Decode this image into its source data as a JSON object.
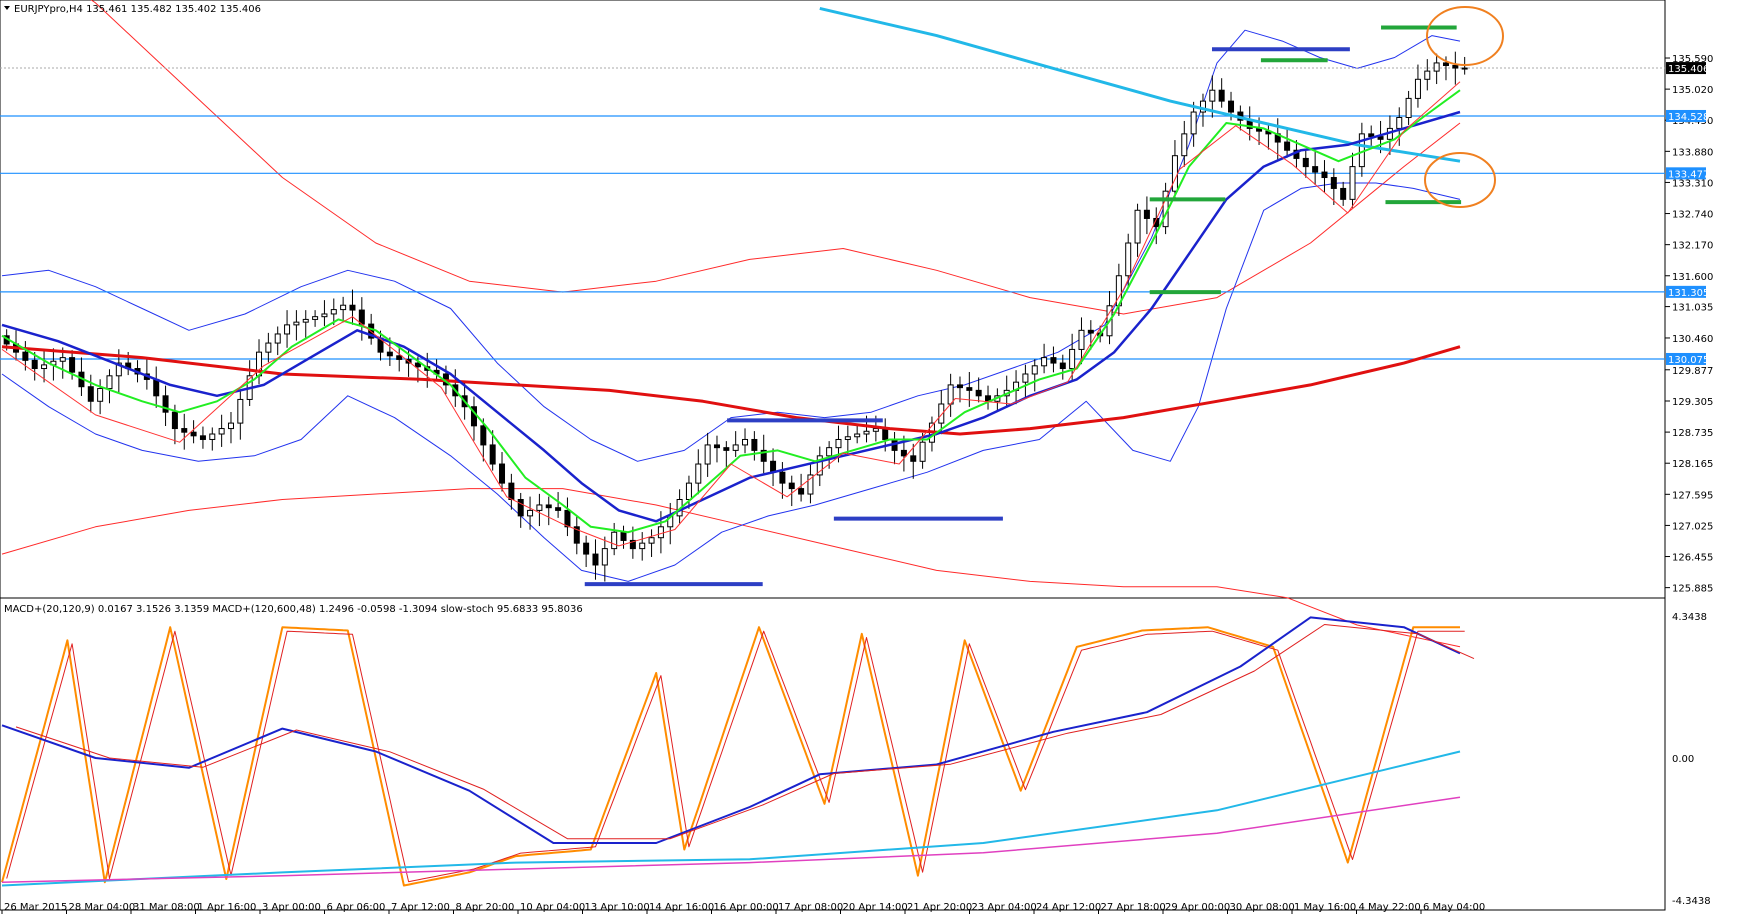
{
  "header": {
    "symbol": "EURJPYpro,H4",
    "ohlc": "135.461 135.482 135.402 135.406",
    "indicators": "MACD+(20,120,9) 0.0167 3.1526 3.1359   MACD+(120,600,48) 1.2496 -0.0598 -1.3094   slow-stoch 95.6833 95.8036"
  },
  "chart_data": [
    {
      "type": "candlestick",
      "title": "EURJPYpro,H4",
      "price_ticks": [
        "135.590",
        "135.020",
        "134.450",
        "133.880",
        "133.310",
        "132.740",
        "132.170",
        "131.600",
        "131.035",
        "130.460",
        "129.877",
        "129.305",
        "128.735",
        "128.165",
        "127.595",
        "127.025",
        "126.455",
        "125.885"
      ],
      "price_ylim": [
        125.75,
        136.25
      ],
      "current_price": "135.406",
      "horizontal_levels": [
        {
          "label": "134.528",
          "value": 134.528
        },
        {
          "label": "133.477",
          "value": 133.477
        },
        {
          "label": "131.305",
          "value": 131.305
        },
        {
          "label": "130.075",
          "value": 130.075
        }
      ],
      "time_labels": [
        "26 Mar 2015",
        "28 Mar 04:00",
        "31 Mar 08:00",
        "1 Apr 16:00",
        "3 Apr 00:00",
        "6 Apr 06:00",
        "7 Apr 12:00",
        "8 Apr 20:00",
        "10 Apr 04:00",
        "13 Apr 10:00",
        "14 Apr 16:00",
        "16 Apr 00:00",
        "17 Apr 08:00",
        "20 Apr 14:00",
        "21 Apr 20:00",
        "23 Apr 04:00",
        "24 Apr 12:00",
        "27 Apr 18:00",
        "29 Apr 00:00",
        "30 Apr 08:00",
        "1 May 16:00",
        "4 May 22:00",
        "6 May 04:00"
      ],
      "close_path": [
        [
          0,
          130.5
        ],
        [
          8,
          129.9
        ],
        [
          14,
          130.1
        ],
        [
          20,
          129.3
        ],
        [
          26,
          130.0
        ],
        [
          32,
          129.7
        ],
        [
          38,
          128.8
        ],
        [
          44,
          128.6
        ],
        [
          50,
          128.9
        ],
        [
          56,
          130.2
        ],
        [
          62,
          130.7
        ],
        [
          70,
          130.9
        ],
        [
          75,
          131.1
        ],
        [
          82,
          130.2
        ],
        [
          88,
          130.0
        ],
        [
          94,
          129.8
        ],
        [
          100,
          129.2
        ],
        [
          104,
          128.5
        ],
        [
          108,
          127.8
        ],
        [
          112,
          127.2
        ],
        [
          116,
          127.4
        ],
        [
          120,
          127.3
        ],
        [
          124,
          126.7
        ],
        [
          128,
          126.3
        ],
        [
          132,
          126.9
        ],
        [
          136,
          126.6
        ],
        [
          140,
          126.8
        ],
        [
          144,
          127.2
        ],
        [
          148,
          127.8
        ],
        [
          152,
          128.5
        ],
        [
          156,
          128.4
        ],
        [
          160,
          128.6
        ],
        [
          164,
          128.2
        ],
        [
          168,
          127.8
        ],
        [
          172,
          127.6
        ],
        [
          176,
          128.3
        ],
        [
          180,
          128.6
        ],
        [
          184,
          128.7
        ],
        [
          188,
          128.8
        ],
        [
          192,
          128.4
        ],
        [
          196,
          128.2
        ],
        [
          200,
          128.9
        ],
        [
          204,
          129.6
        ],
        [
          208,
          129.5
        ],
        [
          212,
          129.3
        ],
        [
          216,
          129.5
        ],
        [
          220,
          129.8
        ],
        [
          224,
          130.1
        ],
        [
          228,
          129.9
        ],
        [
          232,
          130.6
        ],
        [
          236,
          130.5
        ],
        [
          240,
          131.6
        ],
        [
          244,
          132.8
        ],
        [
          248,
          132.5
        ],
        [
          252,
          133.8
        ],
        [
          256,
          134.6
        ],
        [
          260,
          135.0
        ],
        [
          264,
          134.6
        ],
        [
          268,
          134.3
        ],
        [
          272,
          134.2
        ],
        [
          276,
          133.9
        ],
        [
          280,
          133.6
        ],
        [
          284,
          133.4
        ],
        [
          288,
          133.0
        ],
        [
          292,
          134.2
        ],
        [
          296,
          134.1
        ],
        [
          300,
          134.5
        ],
        [
          304,
          135.2
        ],
        [
          308,
          135.5
        ],
        [
          312,
          135.406
        ]
      ],
      "ma_green": [
        [
          0,
          130.5
        ],
        [
          10,
          130.0
        ],
        [
          20,
          129.6
        ],
        [
          30,
          129.3
        ],
        [
          38,
          129.1
        ],
        [
          46,
          129.3
        ],
        [
          54,
          129.7
        ],
        [
          62,
          130.3
        ],
        [
          72,
          130.8
        ],
        [
          80,
          130.6
        ],
        [
          88,
          130.1
        ],
        [
          96,
          129.6
        ],
        [
          104,
          128.8
        ],
        [
          112,
          127.9
        ],
        [
          120,
          127.4
        ],
        [
          126,
          127.0
        ],
        [
          134,
          126.9
        ],
        [
          142,
          127.1
        ],
        [
          150,
          127.7
        ],
        [
          158,
          128.3
        ],
        [
          166,
          128.4
        ],
        [
          174,
          128.2
        ],
        [
          182,
          128.4
        ],
        [
          190,
          128.6
        ],
        [
          198,
          128.6
        ],
        [
          206,
          129.1
        ],
        [
          214,
          129.4
        ],
        [
          222,
          129.7
        ],
        [
          230,
          129.9
        ],
        [
          238,
          130.9
        ],
        [
          246,
          132.2
        ],
        [
          254,
          133.6
        ],
        [
          262,
          134.4
        ],
        [
          270,
          134.3
        ],
        [
          278,
          134.0
        ],
        [
          286,
          133.7
        ],
        [
          292,
          133.9
        ],
        [
          298,
          134.1
        ],
        [
          304,
          134.5
        ],
        [
          312,
          135.0
        ]
      ],
      "ma_blue": [
        [
          0,
          130.7
        ],
        [
          12,
          130.4
        ],
        [
          24,
          130.0
        ],
        [
          36,
          129.6
        ],
        [
          46,
          129.4
        ],
        [
          56,
          129.6
        ],
        [
          66,
          130.1
        ],
        [
          76,
          130.6
        ],
        [
          86,
          130.3
        ],
        [
          96,
          129.8
        ],
        [
          106,
          129.1
        ],
        [
          116,
          128.4
        ],
        [
          124,
          127.8
        ],
        [
          132,
          127.3
        ],
        [
          140,
          127.1
        ],
        [
          150,
          127.5
        ],
        [
          160,
          127.9
        ],
        [
          170,
          128.1
        ],
        [
          180,
          128.3
        ],
        [
          190,
          128.5
        ],
        [
          200,
          128.7
        ],
        [
          210,
          129.0
        ],
        [
          220,
          129.4
        ],
        [
          230,
          129.7
        ],
        [
          238,
          130.2
        ],
        [
          246,
          131.0
        ],
        [
          254,
          132.0
        ],
        [
          262,
          133.0
        ],
        [
          270,
          133.6
        ],
        [
          278,
          133.9
        ],
        [
          288,
          134.0
        ],
        [
          300,
          134.3
        ],
        [
          312,
          134.6
        ]
      ],
      "ma_red": [
        [
          0,
          130.3
        ],
        [
          30,
          130.1
        ],
        [
          60,
          129.8
        ],
        [
          90,
          129.7
        ],
        [
          110,
          129.6
        ],
        [
          130,
          129.5
        ],
        [
          150,
          129.3
        ],
        [
          170,
          129.0
        ],
        [
          190,
          128.8
        ],
        [
          205,
          128.7
        ],
        [
          220,
          128.8
        ],
        [
          240,
          129.0
        ],
        [
          260,
          129.3
        ],
        [
          280,
          129.6
        ],
        [
          300,
          130.0
        ],
        [
          312,
          130.3
        ]
      ],
      "ma_cyan": [
        [
          175,
          136.5
        ],
        [
          200,
          136.0
        ],
        [
          225,
          135.4
        ],
        [
          250,
          134.8
        ],
        [
          270,
          134.4
        ],
        [
          290,
          134.0
        ],
        [
          312,
          133.7
        ]
      ],
      "bb_upper": [
        [
          0,
          131.6
        ],
        [
          10,
          131.7
        ],
        [
          20,
          131.4
        ],
        [
          30,
          131.0
        ],
        [
          40,
          130.6
        ],
        [
          52,
          130.9
        ],
        [
          64,
          131.4
        ],
        [
          74,
          131.7
        ],
        [
          84,
          131.5
        ],
        [
          96,
          131.0
        ],
        [
          106,
          130.0
        ],
        [
          116,
          129.2
        ],
        [
          126,
          128.6
        ],
        [
          136,
          128.2
        ],
        [
          146,
          128.4
        ],
        [
          156,
          129.0
        ],
        [
          166,
          129.1
        ],
        [
          176,
          129.0
        ],
        [
          186,
          129.1
        ],
        [
          196,
          129.4
        ],
        [
          206,
          129.6
        ],
        [
          216,
          129.9
        ],
        [
          226,
          130.2
        ],
        [
          236,
          130.7
        ],
        [
          246,
          132.3
        ],
        [
          254,
          134.0
        ],
        [
          260,
          135.5
        ],
        [
          266,
          136.1
        ],
        [
          274,
          135.9
        ],
        [
          282,
          135.6
        ],
        [
          290,
          135.4
        ],
        [
          298,
          135.6
        ],
        [
          306,
          136.0
        ],
        [
          312,
          135.9
        ]
      ],
      "bb_lower": [
        [
          0,
          129.8
        ],
        [
          10,
          129.2
        ],
        [
          20,
          128.7
        ],
        [
          30,
          128.4
        ],
        [
          42,
          128.2
        ],
        [
          54,
          128.3
        ],
        [
          64,
          128.6
        ],
        [
          74,
          129.4
        ],
        [
          84,
          129.0
        ],
        [
          96,
          128.3
        ],
        [
          106,
          127.6
        ],
        [
          116,
          126.8
        ],
        [
          124,
          126.2
        ],
        [
          134,
          126.0
        ],
        [
          144,
          126.3
        ],
        [
          154,
          126.9
        ],
        [
          164,
          127.2
        ],
        [
          174,
          127.4
        ],
        [
          186,
          127.7
        ],
        [
          198,
          128.0
        ],
        [
          210,
          128.4
        ],
        [
          222,
          128.6
        ],
        [
          232,
          129.3
        ],
        [
          242,
          128.4
        ],
        [
          250,
          128.2
        ],
        [
          256,
          129.2
        ],
        [
          262,
          131.0
        ],
        [
          270,
          132.8
        ],
        [
          278,
          133.2
        ],
        [
          286,
          133.3
        ],
        [
          294,
          133.3
        ],
        [
          302,
          133.2
        ],
        [
          312,
          133.0
        ]
      ],
      "env_upper": [
        [
          0,
          137.8
        ],
        [
          20,
          136.6
        ],
        [
          40,
          135.0
        ],
        [
          60,
          133.4
        ],
        [
          80,
          132.2
        ],
        [
          100,
          131.5
        ],
        [
          120,
          131.3
        ],
        [
          140,
          131.5
        ],
        [
          160,
          131.9
        ],
        [
          180,
          132.1
        ],
        [
          200,
          131.7
        ],
        [
          220,
          131.2
        ],
        [
          240,
          130.9
        ],
        [
          260,
          131.2
        ],
        [
          280,
          132.2
        ],
        [
          300,
          133.6
        ],
        [
          312,
          134.4
        ]
      ],
      "env_lower": [
        [
          0,
          126.5
        ],
        [
          20,
          127.0
        ],
        [
          40,
          127.3
        ],
        [
          60,
          127.5
        ],
        [
          80,
          127.6
        ],
        [
          100,
          127.7
        ],
        [
          120,
          127.7
        ],
        [
          140,
          127.4
        ],
        [
          160,
          127.0
        ],
        [
          180,
          126.6
        ],
        [
          200,
          126.2
        ],
        [
          220,
          126.0
        ],
        [
          240,
          125.9
        ],
        [
          260,
          125.9
        ],
        [
          275,
          125.7
        ],
        [
          290,
          125.2
        ],
        [
          312,
          124.8
        ]
      ],
      "macd_pane": {
        "ticks": [
          "4.3438",
          "0.00",
          "-4.3438"
        ],
        "ylim": [
          -4.3438,
          4.3438
        ]
      }
    }
  ]
}
